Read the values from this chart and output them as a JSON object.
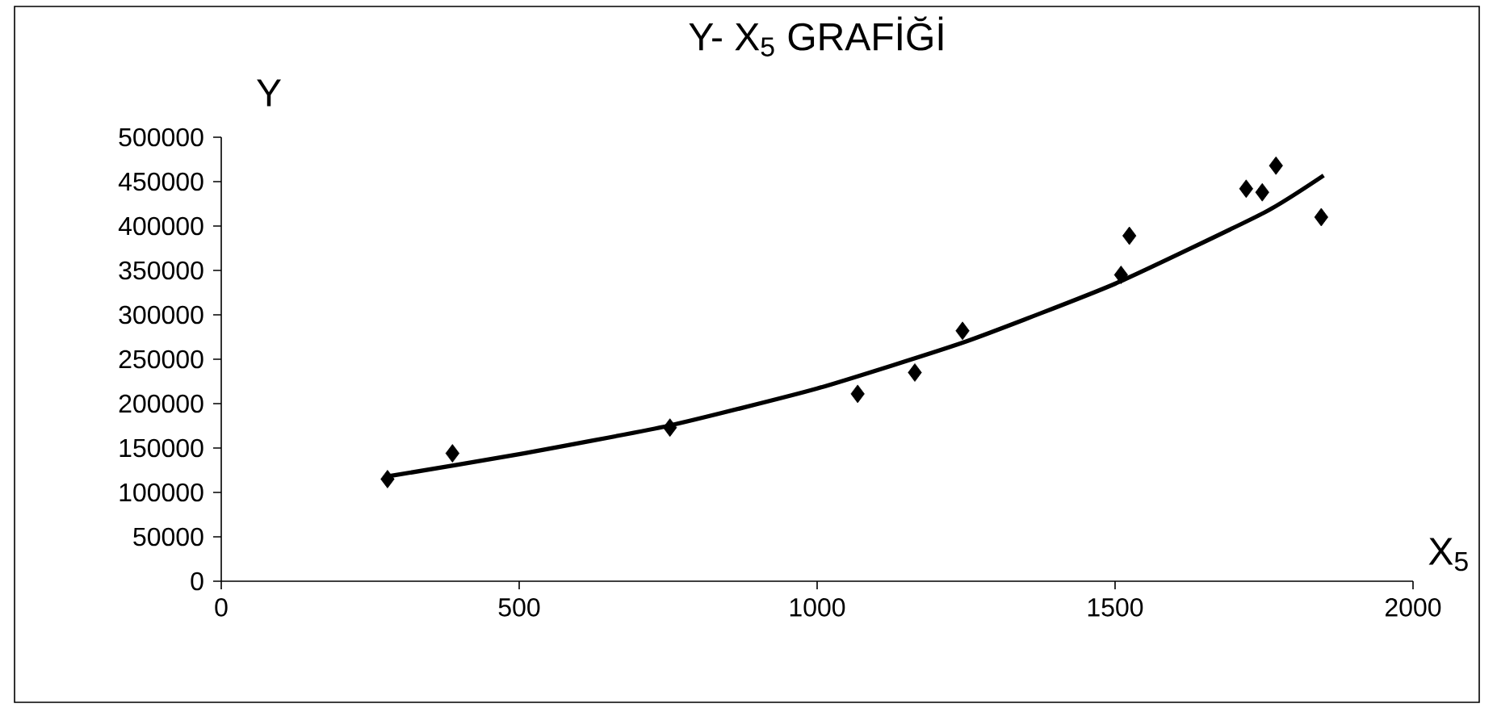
{
  "chart_data": {
    "type": "scatter",
    "title": "Y- X$_{5}$ GRAFİĞİ",
    "xlabel": "X$_{5}$",
    "ylabel": "Y",
    "xlim": [
      0,
      2000
    ],
    "ylim": [
      0,
      500000
    ],
    "xticks": [
      0,
      500,
      1000,
      1500,
      2000
    ],
    "yticks": [
      0,
      50000,
      100000,
      150000,
      200000,
      250000,
      300000,
      350000,
      400000,
      450000,
      500000
    ],
    "series": [
      {
        "type": "scatter",
        "marker": "diamond",
        "color": "#000000",
        "x": [
          279,
          388,
          753,
          1068,
          1164,
          1244,
          1510,
          1524,
          1720,
          1747,
          1770,
          1846
        ],
        "values": [
          115000,
          144000,
          173000,
          211000,
          235000,
          282000,
          345000,
          389000,
          442000,
          438000,
          468000,
          410000
        ]
      },
      {
        "type": "line",
        "marker": "none",
        "color": "#000000",
        "x": [
          279,
          500,
          750,
          1000,
          1250,
          1500,
          1750,
          1850
        ],
        "values": [
          118000,
          143000,
          175000,
          217000,
          270000,
          335000,
          415000,
          457000
        ]
      }
    ]
  }
}
